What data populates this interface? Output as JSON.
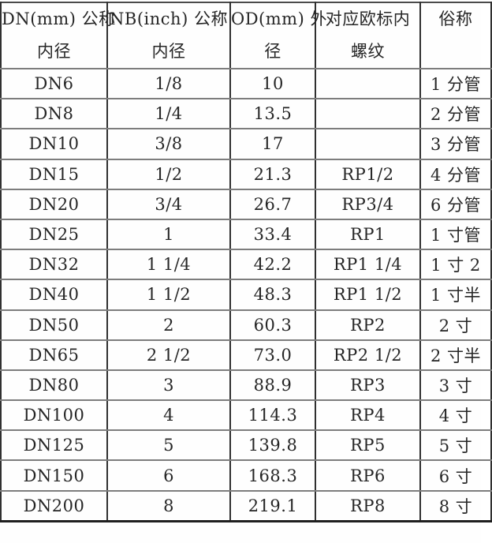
{
  "page": {
    "background_color": "#fefefe",
    "text_color": "#262626",
    "grid_vertical_color": "#303030",
    "grid_horizontal_color": "#7d7d7d"
  },
  "table": {
    "columns": [
      {
        "id": "dn",
        "lines": [
          "DN(mm) 公称",
          "内径"
        ]
      },
      {
        "id": "nb",
        "lines": [
          "NB(inch) 公称",
          "内径"
        ]
      },
      {
        "id": "od",
        "lines": [
          "OD(mm) 外",
          "径"
        ]
      },
      {
        "id": "euro",
        "lines": [
          "对应欧标内",
          "螺纹"
        ]
      },
      {
        "id": "common",
        "lines": [
          "俗称"
        ]
      }
    ],
    "rows": [
      [
        "DN6",
        "1/8",
        "10",
        "",
        "1 分管"
      ],
      [
        "DN8",
        "1/4",
        "13.5",
        "",
        "2 分管"
      ],
      [
        "DN10",
        "3/8",
        "17",
        "",
        "3 分管"
      ],
      [
        "DN15",
        "1/2",
        "21.3",
        "RP1/2",
        "4 分管"
      ],
      [
        "DN20",
        "3/4",
        "26.7",
        "RP3/4",
        "6 分管"
      ],
      [
        "DN25",
        "1",
        "33.4",
        "RP1",
        "1 寸管"
      ],
      [
        "DN32",
        "1 1/4",
        "42.2",
        "RP1 1/4",
        "1 寸 2"
      ],
      [
        "DN40",
        "1 1/2",
        "48.3",
        "RP1 1/2",
        "1 寸半"
      ],
      [
        "DN50",
        "2",
        "60.3",
        "RP2",
        "2 寸"
      ],
      [
        "DN65",
        "2 1/2",
        "73.0",
        "RP2 1/2",
        "2 寸半"
      ],
      [
        "DN80",
        "3",
        "88.9",
        "RP3",
        "3 寸"
      ],
      [
        "DN100",
        "4",
        "114.3",
        "RP4",
        "4 寸"
      ],
      [
        "DN125",
        "5",
        "139.8",
        "RP5",
        "5 寸"
      ],
      [
        "DN150",
        "6",
        "168.3",
        "RP6",
        "6 寸"
      ],
      [
        "DN200",
        "8",
        "219.1",
        "RP8",
        "8 寸"
      ]
    ]
  }
}
